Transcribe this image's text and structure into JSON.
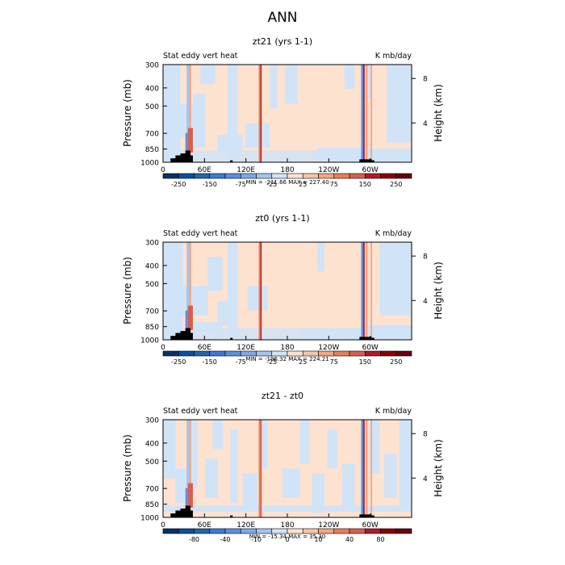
{
  "figure": {
    "title": "ANN",
    "colors": {
      "palette": [
        "#08306b",
        "#08519c",
        "#2166ac",
        "#3a7bd5",
        "#5b8fe0",
        "#7fa8e8",
        "#a6c3ef",
        "#d1e3f7",
        "#fde2d0",
        "#f8c4a5",
        "#f4a582",
        "#ea7d56",
        "#d6604d",
        "#b2182b",
        "#8b0000",
        "#67000d"
      ],
      "land": "#000000",
      "title_gray": "#555555"
    }
  },
  "chart_data": [
    {
      "type": "heatmap",
      "title": "zt21 (yrs 1-1)",
      "left_label": "Stat eddy vert heat",
      "right_label": "K mb/day",
      "ylabel": "Pressure (mb)",
      "ylabel_right": "Height (km)",
      "y_ticks": [
        "300",
        "400",
        "500",
        "700",
        "850",
        "1000"
      ],
      "y_right_ticks": [
        "8",
        "4"
      ],
      "x_ticks": [
        "0",
        "60E",
        "120E",
        "180",
        "120W",
        "60W"
      ],
      "min_max": "MIN = -211.66   MAX = 227.40",
      "colorbar_labels": [
        "-250",
        "-150",
        "-75",
        "-25",
        "25",
        "75",
        "150",
        "250"
      ],
      "scale": "full"
    },
    {
      "type": "heatmap",
      "title": "zt0 (yrs 1-1)",
      "left_label": "Stat eddy vert heat",
      "right_label": "K mb/day",
      "ylabel": "Pressure (mb)",
      "ylabel_right": "Height (km)",
      "y_ticks": [
        "300",
        "400",
        "500",
        "700",
        "850",
        "1000"
      ],
      "y_right_ticks": [
        "8",
        "4"
      ],
      "x_ticks": [
        "0",
        "60E",
        "120E",
        "180",
        "120W",
        "60W"
      ],
      "min_max": "MIN = -196.32   MAX = 224.21",
      "colorbar_labels": [
        "-250",
        "-150",
        "-75",
        "-25",
        "25",
        "75",
        "150",
        "250"
      ],
      "scale": "full"
    },
    {
      "type": "heatmap",
      "title": "zt21 - zt0",
      "left_label": "Stat eddy vert heat",
      "right_label": "K mb/day",
      "ylabel": "Pressure (mb)",
      "ylabel_right": "Height (km)",
      "y_ticks": [
        "300",
        "400",
        "500",
        "700",
        "850",
        "1000"
      ],
      "y_right_ticks": [
        "8",
        "4"
      ],
      "x_ticks": [
        "0",
        "60E",
        "120E",
        "180",
        "120W",
        "60W"
      ],
      "min_max": "MIN = -15.34   MAX =  35.30",
      "colorbar_labels": [
        "-80",
        "-40",
        "-10",
        "0",
        "10",
        "40",
        "80"
      ],
      "scale": "diff"
    }
  ]
}
